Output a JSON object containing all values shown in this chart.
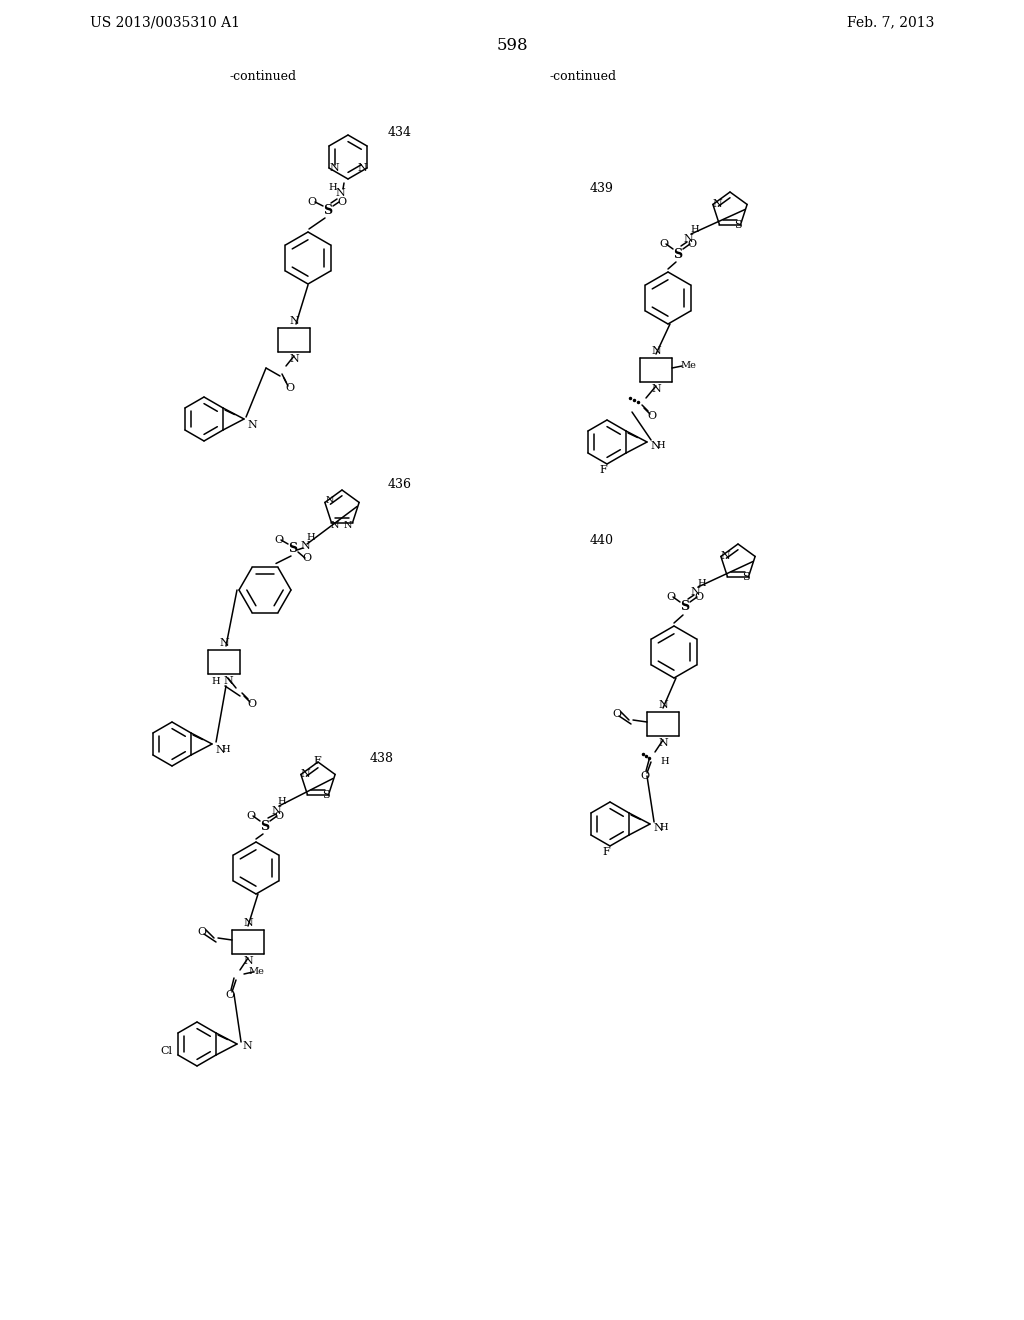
{
  "page_header_left": "US 2013/0035310 A1",
  "page_header_right": "Feb. 7, 2013",
  "page_number": "598",
  "continued_left": "-continued",
  "continued_right": "-continued",
  "bg_color": "#ffffff",
  "text_color": "#000000"
}
